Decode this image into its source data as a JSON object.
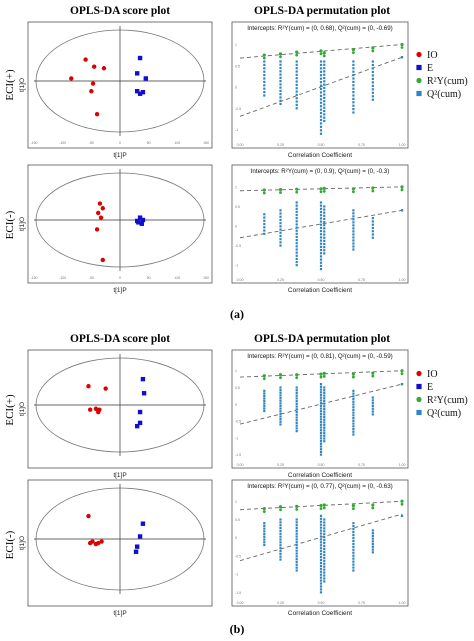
{
  "titles": {
    "score_plot": "OPLS-DA score plot",
    "permutation_plot": "OPLS-DA permutation plot"
  },
  "row_labels": [
    "ECI(+)",
    "ECI(-)",
    "ECI(+)",
    "ECI(-)"
  ],
  "panel_labels": [
    "(a)",
    "(b)"
  ],
  "legend": [
    {
      "label": "IO",
      "color": "#dd0000",
      "marker": "circle"
    },
    {
      "label": "E",
      "color": "#1010cc",
      "marker": "square"
    },
    {
      "label": "R²Y(cum)",
      "color": "#33aa33",
      "marker": "circle"
    },
    {
      "label": "Q²(cum)",
      "color": "#2e86c1",
      "marker": "square"
    }
  ],
  "colors": {
    "io": "#dd0000",
    "e": "#1010cc",
    "r2": "#33aa33",
    "q2": "#2e86c1",
    "trend": "#666666"
  },
  "chart_data": [
    {
      "type": "scatter",
      "name": "score-a-pos",
      "xlabel": "t[1]P",
      "ylabel": "t[1]O",
      "xticks": [
        "-150",
        "-100",
        "-50",
        "0",
        "50",
        "100",
        "150"
      ],
      "yticks": [],
      "xlim": [
        -150,
        150
      ],
      "ylim": [
        -100,
        100
      ],
      "series": [
        {
          "name": "IO",
          "points": [
            [
              -60,
              42
            ],
            [
              -45,
              28
            ],
            [
              -28,
              25
            ],
            [
              -85,
              5
            ],
            [
              -50,
              -20
            ],
            [
              -47,
              -5
            ],
            [
              -40,
              -65
            ]
          ]
        },
        {
          "name": "E",
          "points": [
            [
              35,
              45
            ],
            [
              30,
              15
            ],
            [
              45,
              5
            ],
            [
              30,
              -20
            ],
            [
              40,
              -22
            ],
            [
              35,
              -25
            ]
          ]
        }
      ]
    },
    {
      "type": "scatter",
      "name": "perm-a-pos",
      "title": "Intercepts: R²Y(cum) = (0, 0.68), Q²(cum) = (0, -0.69)",
      "xlabel": "Correlation Coefficient",
      "xticks": [
        "0.00",
        "0.25",
        "0.50",
        "0.75",
        "1.00"
      ],
      "yticks": [
        "1",
        "0.5",
        "0",
        "-0.5",
        "-1"
      ],
      "xlim": [
        0,
        1
      ],
      "ylim": [
        -1.2,
        1.2
      ],
      "r2": {
        "intercept": 0.68,
        "end": 1.0,
        "points": [
          [
            0.15,
            0.75
          ],
          [
            0.25,
            0.78
          ],
          [
            0.35,
            0.82
          ],
          [
            0.5,
            0.85
          ],
          [
            0.52,
            0.8
          ],
          [
            0.7,
            0.88
          ],
          [
            0.82,
            0.92
          ],
          [
            1.0,
            1.0
          ]
        ]
      },
      "q2": {
        "intercept": -0.69,
        "end": 0.7,
        "columns": [
          [
            0.15,
            -0.2,
            0.6
          ],
          [
            0.25,
            -0.4,
            0.6
          ],
          [
            0.35,
            -0.5,
            0.6
          ],
          [
            0.5,
            -1.1,
            0.6
          ],
          [
            0.52,
            -0.8,
            0.6
          ],
          [
            0.7,
            -0.6,
            0.6
          ],
          [
            0.82,
            -0.3,
            0.6
          ],
          [
            1.0,
            0.7,
            0.7
          ]
        ]
      }
    },
    {
      "type": "scatter",
      "name": "score-a-neg",
      "xlabel": "t[1]P",
      "ylabel": "t[1]O",
      "xticks": [
        "-150",
        "-100",
        "-50",
        "0",
        "50",
        "100",
        "150"
      ],
      "yticks": [],
      "xlim": [
        -150,
        150
      ],
      "ylim": [
        -100,
        100
      ],
      "series": [
        {
          "name": "IO",
          "points": [
            [
              -35,
              35
            ],
            [
              -30,
              25
            ],
            [
              -38,
              15
            ],
            [
              -33,
              5
            ],
            [
              -40,
              -20
            ],
            [
              -30,
              -85
            ]
          ]
        },
        {
          "name": "E",
          "points": [
            [
              35,
              5
            ],
            [
              40,
              0
            ],
            [
              30,
              -2
            ],
            [
              38,
              -8
            ],
            [
              32,
              -5
            ]
          ]
        }
      ]
    },
    {
      "type": "scatter",
      "name": "perm-a-neg",
      "title": "Intercepts: R²Y(cum) = (0, 0.9), Q²(cum) = (0, -0.3)",
      "xlabel": "Correlation Coefficient",
      "xticks": [
        "0.00",
        "0.25",
        "0.50",
        "0.75",
        "1.00"
      ],
      "yticks": [
        "1",
        "0.5",
        "0",
        "-0.5",
        "-1"
      ],
      "xlim": [
        0,
        1
      ],
      "ylim": [
        -1.2,
        1.2
      ],
      "r2": {
        "intercept": 0.9,
        "end": 1.0,
        "points": [
          [
            0.15,
            0.92
          ],
          [
            0.25,
            0.93
          ],
          [
            0.35,
            0.94
          ],
          [
            0.5,
            0.95
          ],
          [
            0.52,
            0.96
          ],
          [
            0.7,
            0.95
          ],
          [
            0.82,
            0.97
          ],
          [
            1.0,
            1.0
          ]
        ]
      },
      "q2": {
        "intercept": -0.3,
        "end": 0.4,
        "columns": [
          [
            0.15,
            -0.2,
            0.3
          ],
          [
            0.25,
            -0.5,
            0.4
          ],
          [
            0.35,
            -1.0,
            0.6
          ],
          [
            0.5,
            -1.1,
            0.6
          ],
          [
            0.52,
            -0.7,
            0.5
          ],
          [
            0.7,
            -0.6,
            0.4
          ],
          [
            0.82,
            -0.3,
            0.2
          ],
          [
            1.0,
            0.4,
            0.4
          ]
        ]
      }
    },
    {
      "type": "scatter",
      "name": "score-b-pos",
      "xlabel": "t[1]P",
      "ylabel": "t[1]O",
      "xticks": [],
      "yticks": [],
      "xlim": [
        -150,
        150
      ],
      "ylim": [
        -100,
        100
      ],
      "series": [
        {
          "name": "IO",
          "points": [
            [
              -55,
              40
            ],
            [
              -52,
              -10
            ],
            [
              -42,
              -8
            ],
            [
              -38,
              -15
            ],
            [
              -36,
              -10
            ],
            [
              -25,
              35
            ]
          ]
        },
        {
          "name": "E",
          "points": [
            [
              40,
              55
            ],
            [
              42,
              25
            ],
            [
              35,
              -15
            ],
            [
              35,
              -38
            ],
            [
              30,
              -45
            ]
          ]
        }
      ]
    },
    {
      "type": "scatter",
      "name": "perm-b-pos",
      "title": "Intercepts: R²Y(cum) = (0, 0.81), Q²(cum) = (0, -0.59)",
      "xlabel": "Correlation Coefficient",
      "xticks": [
        "0.00",
        "0.25",
        "0.50",
        "0.75",
        "1.00"
      ],
      "yticks": [
        "1",
        "0.5",
        "0",
        "-0.5",
        "-1",
        "-1.5"
      ],
      "xlim": [
        0,
        1
      ],
      "ylim": [
        -1.6,
        1.2
      ],
      "r2": {
        "intercept": 0.81,
        "end": 1.0,
        "points": [
          [
            0.15,
            0.85
          ],
          [
            0.25,
            0.88
          ],
          [
            0.35,
            0.88
          ],
          [
            0.5,
            0.9
          ],
          [
            0.52,
            0.92
          ],
          [
            0.7,
            0.9
          ],
          [
            0.82,
            0.93
          ],
          [
            1.0,
            1.0
          ]
        ]
      },
      "q2": {
        "intercept": -0.59,
        "end": 0.6,
        "columns": [
          [
            0.15,
            -0.2,
            0.4
          ],
          [
            0.25,
            -0.6,
            0.5
          ],
          [
            0.35,
            -0.8,
            0.5
          ],
          [
            0.5,
            -1.5,
            0.6
          ],
          [
            0.52,
            -1.1,
            0.5
          ],
          [
            0.7,
            -0.9,
            0.4
          ],
          [
            0.82,
            -0.3,
            0.2
          ],
          [
            1.0,
            0.6,
            0.6
          ]
        ]
      }
    },
    {
      "type": "scatter",
      "name": "score-b-neg",
      "xlabel": "t[1]P",
      "ylabel": "t[1]O",
      "xticks": [],
      "yticks": [],
      "xlim": [
        -150,
        150
      ],
      "ylim": [
        -100,
        100
      ],
      "series": [
        {
          "name": "IO",
          "points": [
            [
              -55,
              45
            ],
            [
              -52,
              -8
            ],
            [
              -48,
              -5
            ],
            [
              -42,
              -10
            ],
            [
              -38,
              -8
            ],
            [
              -32,
              -5
            ]
          ]
        },
        {
          "name": "E",
          "points": [
            [
              40,
              30
            ],
            [
              35,
              5
            ],
            [
              30,
              -15
            ],
            [
              28,
              -25
            ]
          ]
        }
      ]
    },
    {
      "type": "scatter",
      "name": "perm-b-neg",
      "title": "Intercepts: R²Y(cum) = (0, 0.77), Q²(cum) = (0, -0.63)",
      "xlabel": "Correlation Coefficient",
      "xticks": [
        "0.00",
        "0.25",
        "0.50",
        "0.75",
        "1.00"
      ],
      "yticks": [
        "1",
        "0.5",
        "0",
        "-0.5",
        "-1",
        "-1.5"
      ],
      "xlim": [
        0,
        1
      ],
      "ylim": [
        -1.6,
        1.2
      ],
      "r2": {
        "intercept": 0.77,
        "end": 1.0,
        "points": [
          [
            0.15,
            0.8
          ],
          [
            0.25,
            0.85
          ],
          [
            0.35,
            0.86
          ],
          [
            0.5,
            0.88
          ],
          [
            0.52,
            0.9
          ],
          [
            0.7,
            0.88
          ],
          [
            0.82,
            0.9
          ],
          [
            1.0,
            1.0
          ]
        ]
      },
      "q2": {
        "intercept": -0.63,
        "end": 0.65,
        "columns": [
          [
            0.15,
            -0.2,
            0.4
          ],
          [
            0.25,
            -0.6,
            0.5
          ],
          [
            0.35,
            -0.9,
            0.5
          ],
          [
            0.5,
            -1.5,
            0.6
          ],
          [
            0.52,
            -1.2,
            0.5
          ],
          [
            0.7,
            -0.9,
            0.4
          ],
          [
            0.82,
            -0.4,
            0.2
          ],
          [
            1.0,
            0.6,
            0.6
          ]
        ]
      }
    }
  ]
}
